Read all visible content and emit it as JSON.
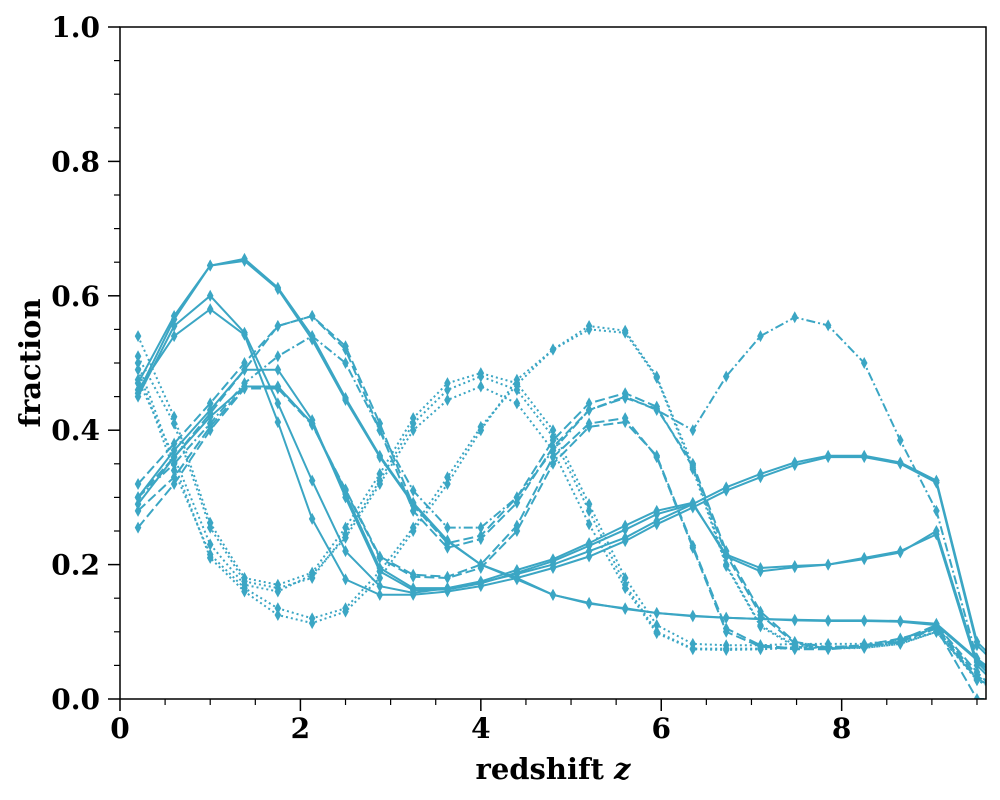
{
  "chart_data": {
    "type": "line",
    "xlabel": "redshift",
    "xlabel_var": "z",
    "ylabel": "fraction",
    "xlim": [
      0,
      9.6
    ],
    "ylim": [
      0,
      1.0
    ],
    "xticks": [
      "0",
      "2",
      "4",
      "6",
      "8"
    ],
    "xtick_values": [
      0,
      2,
      4,
      6,
      8
    ],
    "yticks": [
      "0.0",
      "0.2",
      "0.4",
      "0.6",
      "0.8",
      "1.0"
    ],
    "ytick_values": [
      0,
      0.2,
      0.4,
      0.6,
      0.8,
      1.0
    ],
    "grid": false,
    "legend": "none",
    "marker": "thin-diamond",
    "color": "#3ba6c4",
    "x": [
      0.2,
      0.6,
      1.0,
      1.38,
      1.75,
      2.13,
      2.5,
      2.88,
      3.25,
      3.63,
      4.0,
      4.4,
      4.8,
      5.2,
      5.6,
      5.95,
      6.35,
      6.72,
      7.1,
      7.48,
      7.85,
      8.25,
      8.65,
      9.05,
      9.5,
      9.65
    ],
    "series": [
      {
        "style": "solid",
        "values": [
          0.47,
          0.57,
          0.645,
          0.652,
          0.61,
          0.535,
          0.445,
          0.36,
          0.29,
          0.235,
          0.2,
          0.178,
          0.155,
          0.142,
          0.135,
          0.128,
          0.124,
          0.121,
          0.119,
          0.118,
          0.117,
          0.117,
          0.116,
          0.112,
          0.06,
          0.045
        ]
      },
      {
        "style": "solid",
        "values": [
          0.455,
          0.565,
          0.645,
          0.655,
          0.612,
          0.54,
          0.448,
          0.362,
          0.292,
          0.236,
          0.2,
          0.18,
          0.155,
          0.143,
          0.134,
          0.128,
          0.123,
          0.121,
          0.119,
          0.117,
          0.116,
          0.116,
          0.115,
          0.11,
          0.058,
          0.04
        ]
      },
      {
        "style": "solid",
        "values": [
          0.46,
          0.54,
          0.58,
          0.542,
          0.412,
          0.268,
          0.178,
          0.155,
          0.155,
          0.16,
          0.168,
          0.18,
          0.195,
          0.212,
          0.235,
          0.26,
          0.285,
          0.31,
          0.33,
          0.348,
          0.36,
          0.36,
          0.35,
          0.322,
          0.08,
          0.06
        ]
      },
      {
        "style": "solid",
        "values": [
          0.45,
          0.555,
          0.6,
          0.545,
          0.44,
          0.325,
          0.22,
          0.168,
          0.158,
          0.165,
          0.173,
          0.186,
          0.2,
          0.22,
          0.24,
          0.265,
          0.29,
          0.315,
          0.335,
          0.352,
          0.362,
          0.362,
          0.352,
          0.325,
          0.085,
          0.065
        ]
      },
      {
        "style": "solid",
        "values": [
          0.3,
          0.37,
          0.43,
          0.49,
          0.49,
          0.415,
          0.3,
          0.19,
          0.162,
          0.163,
          0.172,
          0.188,
          0.205,
          0.228,
          0.252,
          0.275,
          0.29,
          0.215,
          0.195,
          0.198,
          0.2,
          0.21,
          0.22,
          0.245,
          0.05,
          0.03
        ]
      },
      {
        "style": "solid",
        "values": [
          0.29,
          0.36,
          0.42,
          0.465,
          0.465,
          0.41,
          0.305,
          0.195,
          0.165,
          0.165,
          0.175,
          0.192,
          0.208,
          0.232,
          0.258,
          0.28,
          0.292,
          0.212,
          0.19,
          0.196,
          0.2,
          0.208,
          0.218,
          0.25,
          0.055,
          0.035
        ]
      },
      {
        "style": "dashed",
        "values": [
          0.32,
          0.38,
          0.44,
          0.5,
          0.555,
          0.57,
          0.525,
          0.41,
          0.288,
          0.232,
          0.243,
          0.3,
          0.385,
          0.44,
          0.455,
          0.435,
          0.345,
          0.215,
          0.125,
          0.083,
          0.075,
          0.078,
          0.088,
          0.11,
          0.04,
          0.02
        ]
      },
      {
        "style": "dashed",
        "values": [
          0.3,
          0.36,
          0.425,
          0.49,
          0.555,
          0.57,
          0.52,
          0.4,
          0.28,
          0.225,
          0.238,
          0.292,
          0.375,
          0.43,
          0.448,
          0.432,
          0.35,
          0.22,
          0.13,
          0.085,
          0.077,
          0.08,
          0.09,
          0.105,
          0.0,
          0.0
        ]
      },
      {
        "style": "dashed",
        "values": [
          0.28,
          0.33,
          0.405,
          0.465,
          0.465,
          0.41,
          0.31,
          0.21,
          0.182,
          0.18,
          0.195,
          0.25,
          0.35,
          0.405,
          0.412,
          0.362,
          0.228,
          0.105,
          0.08,
          0.075,
          0.075,
          0.078,
          0.085,
          0.105,
          0.03,
          0.02
        ]
      },
      {
        "style": "dashed",
        "values": [
          0.255,
          0.32,
          0.4,
          0.462,
          0.462,
          0.408,
          0.312,
          0.212,
          0.185,
          0.182,
          0.2,
          0.258,
          0.36,
          0.41,
          0.418,
          0.36,
          0.225,
          0.1,
          0.078,
          0.074,
          0.074,
          0.078,
          0.085,
          0.108,
          0.035,
          0.02
        ]
      },
      {
        "style": "dotted",
        "values": [
          0.54,
          0.42,
          0.262,
          0.18,
          0.17,
          0.188,
          0.255,
          0.335,
          0.418,
          0.47,
          0.485,
          0.47,
          0.4,
          0.29,
          0.18,
          0.11,
          0.082,
          0.08,
          0.08,
          0.082,
          0.082,
          0.082,
          0.088,
          0.105,
          0.03,
          0.02
        ]
      },
      {
        "style": "dotted",
        "values": [
          0.5,
          0.35,
          0.21,
          0.16,
          0.125,
          0.113,
          0.13,
          0.18,
          0.25,
          0.32,
          0.4,
          0.475,
          0.52,
          0.555,
          0.548,
          0.48,
          0.348,
          0.2,
          0.11,
          0.08,
          0.076,
          0.076,
          0.082,
          0.1,
          0.03,
          0.02
        ]
      },
      {
        "style": "dotted",
        "values": [
          0.51,
          0.41,
          0.255,
          0.175,
          0.165,
          0.18,
          0.245,
          0.325,
          0.41,
          0.46,
          0.48,
          0.46,
          0.39,
          0.28,
          0.17,
          0.1,
          0.075,
          0.075,
          0.075,
          0.077,
          0.078,
          0.079,
          0.085,
          0.1,
          0.028,
          0.018
        ]
      },
      {
        "style": "dotted",
        "values": [
          0.49,
          0.34,
          0.215,
          0.165,
          0.135,
          0.12,
          0.135,
          0.19,
          0.255,
          0.33,
          0.405,
          0.468,
          0.52,
          0.55,
          0.545,
          0.478,
          0.342,
          0.198,
          0.108,
          0.078,
          0.075,
          0.076,
          0.082,
          0.1,
          0.03,
          0.02
        ]
      },
      {
        "style": "dotted",
        "values": [
          0.475,
          0.36,
          0.23,
          0.17,
          0.16,
          0.185,
          0.24,
          0.32,
          0.4,
          0.445,
          0.465,
          0.44,
          0.37,
          0.26,
          0.165,
          0.098,
          0.074,
          0.073,
          0.074,
          0.076,
          0.077,
          0.078,
          0.084,
          0.1,
          0.028,
          0.018
        ]
      },
      {
        "style": "dashdot",
        "values": [
          0.3,
          0.35,
          0.41,
          0.47,
          0.51,
          0.54,
          0.5,
          0.4,
          0.31,
          0.255,
          0.255,
          0.3,
          0.37,
          0.43,
          0.45,
          0.43,
          0.4,
          0.48,
          0.54,
          0.568,
          0.556,
          0.5,
          0.385,
          0.28,
          0.06,
          0.04
        ]
      }
    ]
  }
}
